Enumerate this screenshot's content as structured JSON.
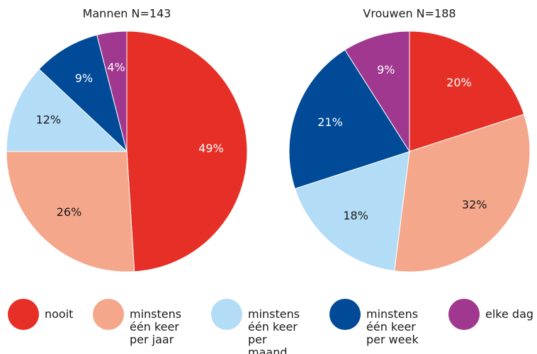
{
  "chart_data": [
    {
      "type": "pie",
      "title": "Mannen N=143",
      "categories": [
        "nooit",
        "minstens één keer per jaar",
        "minstens één keer per maand",
        "minstens één keer per week",
        "elke dag"
      ],
      "values": [
        49,
        26,
        12,
        9,
        4
      ],
      "value_labels": [
        "49%",
        "26%",
        "12%",
        "9%",
        "4%"
      ],
      "colors": [
        "#e63027",
        "#f4a78b",
        "#b3dcf6",
        "#004a98",
        "#a0388f"
      ]
    },
    {
      "type": "pie",
      "title": "Vrouwen N=188",
      "categories": [
        "nooit",
        "minstens één keer per jaar",
        "minstens één keer per maand",
        "minstens één keer per week",
        "elke dag"
      ],
      "values": [
        20,
        32,
        18,
        21,
        9
      ],
      "value_labels": [
        "20%",
        "32%",
        "18%",
        "21%",
        "9%"
      ],
      "colors": [
        "#e63027",
        "#f4a78b",
        "#b3dcf6",
        "#004a98",
        "#a0388f"
      ]
    }
  ]
}
